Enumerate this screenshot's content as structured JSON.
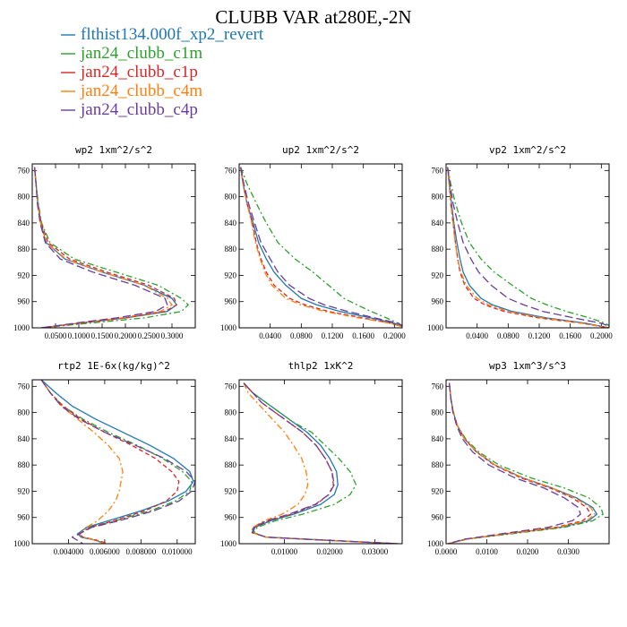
{
  "figure_title": "CLUBB VAR at280E,-2N",
  "legend": [
    {
      "label": "flthist134.000f_xp2_revert",
      "color": "#1f77b4",
      "dash": "solid"
    },
    {
      "label": "jan24_clubb_c1m",
      "color": "#2ca02c",
      "dash": "dashdot"
    },
    {
      "label": "jan24_clubb_c1p",
      "color": "#d62728",
      "dash": "dashed"
    },
    {
      "label": "jan24_clubb_c4m",
      "color": "#ff7f0e",
      "dash": "dashdot"
    },
    {
      "label": "jan24_clubb_c4p",
      "color": "#6a3d9a",
      "dash": "longdash"
    }
  ],
  "chart_data": [
    {
      "type": "line",
      "title": "wp2  1xm^2/s^2",
      "xlim": [
        0.0,
        0.35
      ],
      "ylim": [
        1000,
        750
      ],
      "xticks": [
        0.05,
        0.1,
        0.15,
        0.2,
        0.25,
        0.3
      ],
      "xtick_labels": [
        "0.0500",
        "0.1000",
        "0.1500",
        "0.2000",
        "0.2500",
        "0.3000"
      ],
      "yticks": [
        760,
        800,
        840,
        880,
        920,
        960,
        1000
      ],
      "ytick_labels": [
        "760",
        "800",
        "840",
        "880",
        "920",
        "960",
        "1000"
      ],
      "y": [
        755,
        780,
        810,
        840,
        870,
        895,
        915,
        935,
        955,
        965,
        975,
        985,
        993,
        1000
      ],
      "series": [
        {
          "values": [
            0.005,
            0.008,
            0.012,
            0.018,
            0.03,
            0.07,
            0.15,
            0.24,
            0.3,
            0.31,
            0.29,
            0.2,
            0.1,
            0.02
          ]
        },
        {
          "values": [
            0.005,
            0.008,
            0.013,
            0.02,
            0.038,
            0.09,
            0.18,
            0.27,
            0.32,
            0.335,
            0.32,
            0.24,
            0.12,
            0.02
          ]
        },
        {
          "values": [
            0.005,
            0.008,
            0.012,
            0.019,
            0.034,
            0.08,
            0.16,
            0.25,
            0.305,
            0.31,
            0.285,
            0.2,
            0.1,
            0.02
          ]
        },
        {
          "values": [
            0.005,
            0.008,
            0.012,
            0.018,
            0.03,
            0.072,
            0.15,
            0.24,
            0.29,
            0.3,
            0.275,
            0.19,
            0.095,
            0.02
          ]
        },
        {
          "values": [
            0.005,
            0.008,
            0.011,
            0.017,
            0.028,
            0.06,
            0.13,
            0.22,
            0.285,
            0.29,
            0.265,
            0.18,
            0.09,
            0.02
          ]
        }
      ]
    },
    {
      "type": "line",
      "title": "up2  1xm^2/s^2",
      "xlim": [
        0.0,
        0.21
      ],
      "ylim": [
        1000,
        750
      ],
      "xticks": [
        0.04,
        0.08,
        0.12,
        0.16,
        0.2
      ],
      "xtick_labels": [
        "0.0400",
        "0.0800",
        "0.1200",
        "0.1600",
        "0.2000"
      ],
      "yticks": [
        760,
        800,
        840,
        880,
        920,
        960,
        1000
      ],
      "ytick_labels": [
        "760",
        "800",
        "840",
        "880",
        "920",
        "960",
        "1000"
      ],
      "y": [
        755,
        780,
        810,
        840,
        870,
        895,
        915,
        935,
        955,
        965,
        975,
        985,
        993,
        1000
      ],
      "series": [
        {
          "values": [
            0.002,
            0.005,
            0.01,
            0.018,
            0.025,
            0.035,
            0.045,
            0.06,
            0.08,
            0.1,
            0.13,
            0.17,
            0.2,
            0.215
          ]
        },
        {
          "values": [
            0.002,
            0.01,
            0.022,
            0.035,
            0.05,
            0.072,
            0.095,
            0.115,
            0.135,
            0.152,
            0.17,
            0.19,
            0.205,
            0.215
          ]
        },
        {
          "values": [
            0.002,
            0.005,
            0.01,
            0.017,
            0.022,
            0.028,
            0.035,
            0.045,
            0.065,
            0.085,
            0.115,
            0.16,
            0.195,
            0.215
          ]
        },
        {
          "values": [
            0.002,
            0.005,
            0.01,
            0.016,
            0.021,
            0.027,
            0.033,
            0.042,
            0.06,
            0.08,
            0.11,
            0.155,
            0.195,
            0.215
          ]
        },
        {
          "values": [
            0.002,
            0.006,
            0.012,
            0.02,
            0.028,
            0.04,
            0.05,
            0.065,
            0.09,
            0.11,
            0.14,
            0.175,
            0.205,
            0.215
          ]
        }
      ]
    },
    {
      "type": "line",
      "title": "vp2  1xm^2/s^2",
      "xlim": [
        0.0,
        0.21
      ],
      "ylim": [
        1000,
        750
      ],
      "xticks": [
        0.04,
        0.08,
        0.12,
        0.16,
        0.2
      ],
      "xtick_labels": [
        "0.0400",
        "0.0800",
        "0.1200",
        "0.1600",
        "0.2000"
      ],
      "yticks": [
        760,
        800,
        840,
        880,
        920,
        960,
        1000
      ],
      "ytick_labels": [
        "760",
        "800",
        "840",
        "880",
        "920",
        "960",
        "1000"
      ],
      "y": [
        755,
        780,
        810,
        840,
        870,
        895,
        915,
        935,
        955,
        965,
        975,
        985,
        993,
        1000
      ],
      "series": [
        {
          "values": [
            0.002,
            0.004,
            0.007,
            0.01,
            0.014,
            0.018,
            0.022,
            0.03,
            0.045,
            0.06,
            0.085,
            0.13,
            0.18,
            0.21
          ]
        },
        {
          "values": [
            0.002,
            0.006,
            0.012,
            0.02,
            0.03,
            0.045,
            0.062,
            0.085,
            0.11,
            0.13,
            0.155,
            0.185,
            0.205,
            0.215
          ]
        },
        {
          "values": [
            0.002,
            0.004,
            0.006,
            0.009,
            0.012,
            0.015,
            0.018,
            0.024,
            0.036,
            0.05,
            0.075,
            0.12,
            0.175,
            0.21
          ]
        },
        {
          "values": [
            0.002,
            0.004,
            0.006,
            0.009,
            0.012,
            0.015,
            0.019,
            0.026,
            0.04,
            0.055,
            0.08,
            0.125,
            0.175,
            0.21
          ]
        },
        {
          "values": [
            0.002,
            0.005,
            0.009,
            0.015,
            0.022,
            0.032,
            0.042,
            0.058,
            0.08,
            0.1,
            0.125,
            0.165,
            0.2,
            0.215
          ]
        }
      ]
    },
    {
      "type": "line",
      "title": "rtp2  1E-6x(kg/kg)^2",
      "xlim": [
        0.002,
        0.011
      ],
      "ylim": [
        1000,
        750
      ],
      "xticks": [
        0.004,
        0.006,
        0.008,
        0.01
      ],
      "xtick_labels": [
        "0.004000",
        "0.006000",
        "0.008000",
        "0.010000"
      ],
      "yticks": [
        760,
        800,
        840,
        880,
        920,
        960,
        1000
      ],
      "ytick_labels": [
        "760",
        "800",
        "840",
        "880",
        "920",
        "960",
        "1000"
      ],
      "y": [
        750,
        770,
        790,
        810,
        830,
        850,
        870,
        890,
        905,
        920,
        935,
        950,
        965,
        975,
        985,
        990,
        995,
        1000
      ],
      "series": [
        {
          "values": [
            0.0025,
            0.0033,
            0.0042,
            0.0055,
            0.007,
            0.0085,
            0.0098,
            0.0107,
            0.0109,
            0.0105,
            0.0095,
            0.008,
            0.0062,
            0.005,
            0.0045,
            0.0047,
            0.0055,
            0.006
          ]
        },
        {
          "values": [
            0.0025,
            0.003,
            0.0037,
            0.0048,
            0.0062,
            0.0078,
            0.0092,
            0.0103,
            0.0108,
            0.0107,
            0.0099,
            0.0085,
            0.0066,
            0.0052,
            0.0046,
            0.0048,
            0.0056,
            0.006
          ]
        },
        {
          "values": [
            0.0025,
            0.003,
            0.0037,
            0.0047,
            0.006,
            0.0075,
            0.0088,
            0.0097,
            0.0101,
            0.01,
            0.0094,
            0.0082,
            0.0065,
            0.0052,
            0.0046,
            0.0048,
            0.0056,
            0.0062
          ]
        },
        {
          "values": [
            0.0025,
            0.003,
            0.0036,
            0.0045,
            0.0054,
            0.0062,
            0.0068,
            0.007,
            0.0069,
            0.0068,
            0.0066,
            0.0062,
            0.0056,
            0.005,
            0.0046,
            0.0048,
            0.0055,
            0.006
          ]
        },
        {
          "values": [
            0.0025,
            0.003,
            0.0036,
            0.0046,
            0.006,
            0.0077,
            0.0093,
            0.0105,
            0.011,
            0.0108,
            0.0101,
            0.0087,
            0.0068,
            0.0053,
            0.0046,
            0.0042,
            0.0045,
            0.0048
          ]
        }
      ]
    },
    {
      "type": "line",
      "title": "thlp2  1xK^2",
      "xlim": [
        0.0,
        0.036
      ],
      "ylim": [
        1000,
        750
      ],
      "xticks": [
        0.01,
        0.02,
        0.03
      ],
      "xtick_labels": [
        "0.01000",
        "0.02000",
        "0.03000"
      ],
      "yticks": [
        760,
        800,
        840,
        880,
        920,
        960,
        1000
      ],
      "ytick_labels": [
        "760",
        "800",
        "840",
        "880",
        "920",
        "960",
        "1000"
      ],
      "y": [
        755,
        770,
        785,
        800,
        815,
        830,
        850,
        870,
        890,
        910,
        925,
        940,
        955,
        965,
        975,
        983,
        990,
        995,
        1000
      ],
      "series": [
        {
          "values": [
            0.001,
            0.003,
            0.006,
            0.009,
            0.012,
            0.015,
            0.018,
            0.02,
            0.0215,
            0.0218,
            0.021,
            0.018,
            0.012,
            0.007,
            0.0035,
            0.003,
            0.006,
            0.02,
            0.035
          ]
        },
        {
          "values": [
            0.001,
            0.003,
            0.006,
            0.009,
            0.012,
            0.016,
            0.019,
            0.022,
            0.0245,
            0.0258,
            0.0245,
            0.021,
            0.014,
            0.008,
            0.004,
            0.0032,
            0.006,
            0.02,
            0.035
          ]
        },
        {
          "values": [
            0.001,
            0.003,
            0.005,
            0.008,
            0.011,
            0.014,
            0.017,
            0.019,
            0.0205,
            0.0208,
            0.0198,
            0.017,
            0.0115,
            0.0065,
            0.0033,
            0.0029,
            0.006,
            0.02,
            0.035
          ]
        },
        {
          "values": [
            0.001,
            0.002,
            0.004,
            0.006,
            0.008,
            0.01,
            0.012,
            0.0138,
            0.0148,
            0.0152,
            0.0145,
            0.013,
            0.0095,
            0.0055,
            0.003,
            0.0027,
            0.006,
            0.02,
            0.035
          ]
        },
        {
          "values": [
            0.001,
            0.003,
            0.005,
            0.008,
            0.011,
            0.014,
            0.017,
            0.019,
            0.0205,
            0.021,
            0.0198,
            0.0168,
            0.011,
            0.006,
            0.0032,
            0.0029,
            0.006,
            0.02,
            0.035
          ]
        }
      ]
    },
    {
      "type": "line",
      "title": "wp3  1xm^3/s^3",
      "xlim": [
        0.0,
        0.04
      ],
      "ylim": [
        1000,
        750
      ],
      "xticks": [
        0.0,
        0.01,
        0.02,
        0.03
      ],
      "xtick_labels": [
        "0.0000",
        "0.0100",
        "0.0200",
        "0.0300"
      ],
      "yticks": [
        760,
        800,
        840,
        880,
        920,
        960,
        1000
      ],
      "ytick_labels": [
        "760",
        "800",
        "840",
        "880",
        "920",
        "960",
        "1000"
      ],
      "y": [
        755,
        780,
        800,
        820,
        840,
        860,
        880,
        900,
        915,
        930,
        945,
        955,
        965,
        975,
        985,
        993,
        1000
      ],
      "series": [
        {
          "values": [
            0.0008,
            0.0012,
            0.0018,
            0.0028,
            0.0045,
            0.0075,
            0.012,
            0.019,
            0.026,
            0.032,
            0.036,
            0.037,
            0.035,
            0.028,
            0.015,
            0.005,
            0.0005
          ]
        },
        {
          "values": [
            0.0008,
            0.0012,
            0.0018,
            0.0028,
            0.0048,
            0.008,
            0.013,
            0.021,
            0.029,
            0.035,
            0.038,
            0.0385,
            0.036,
            0.029,
            0.016,
            0.005,
            0.0005
          ]
        },
        {
          "values": [
            0.0008,
            0.0012,
            0.0018,
            0.0028,
            0.0045,
            0.0074,
            0.0118,
            0.0185,
            0.0255,
            0.031,
            0.0345,
            0.0355,
            0.0335,
            0.027,
            0.0145,
            0.005,
            0.0005
          ]
        },
        {
          "values": [
            0.0008,
            0.0012,
            0.0018,
            0.0028,
            0.0045,
            0.0075,
            0.012,
            0.019,
            0.026,
            0.0315,
            0.0355,
            0.0365,
            0.0345,
            0.0275,
            0.015,
            0.005,
            0.0005
          ]
        },
        {
          "values": [
            0.0008,
            0.0012,
            0.0017,
            0.0026,
            0.004,
            0.0065,
            0.0105,
            0.017,
            0.024,
            0.029,
            0.0325,
            0.033,
            0.031,
            0.025,
            0.0135,
            0.0045,
            0.0005
          ]
        }
      ]
    }
  ]
}
